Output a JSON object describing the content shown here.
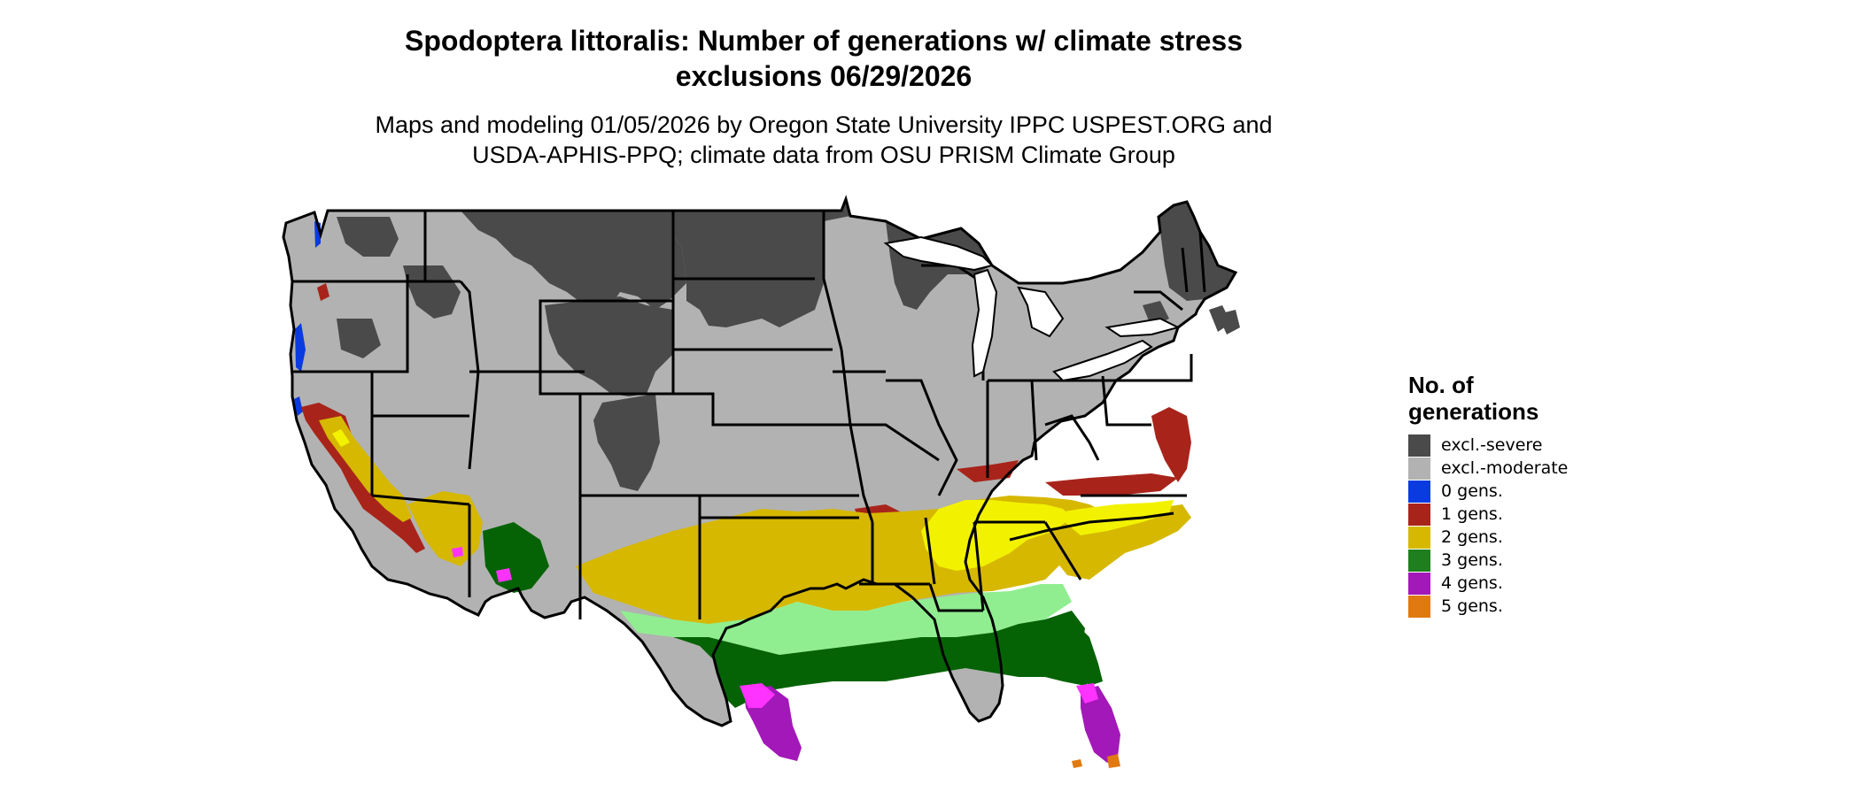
{
  "title_line1": "Spodoptera littoralis: Number of generations w/ climate stress",
  "title_line2": "exclusions 06/29/2026",
  "subtitle_line1": "Maps and modeling 01/05/2026 by Oregon State University IPPC USPEST.ORG and",
  "subtitle_line2": "USDA-APHIS-PPQ; climate data from OSU PRISM Climate Group",
  "legend": {
    "title_line1": "No. of",
    "title_line2": "generations",
    "items": [
      {
        "label": "excl.-severe",
        "color": "#4a4a4a"
      },
      {
        "label": "excl.-moderate",
        "color": "#b2b2b2"
      },
      {
        "label": "0 gens.",
        "color": "#0a3be0"
      },
      {
        "label": "1 gens.",
        "color": "#a8241a"
      },
      {
        "label": "2 gens.",
        "color": "#d6b800"
      },
      {
        "label": "3 gens.",
        "color": "#1f7f1f"
      },
      {
        "label": "4 gens.",
        "color": "#a318b8"
      },
      {
        "label": "5 gens.",
        "color": "#e07a10"
      }
    ]
  },
  "map_colors": {
    "severe": "#4a4a4a",
    "moderate": "#b2b2b2",
    "gen0": "#0a3be0",
    "gen1": "#a8241a",
    "gen2": "#d6b800",
    "gen2_bright": "#f2f200",
    "gen3_light": "#90ee90",
    "gen3": "#056305",
    "gen4": "#a318b8",
    "gen4_bright": "#ff33ff",
    "gen5": "#e07a10"
  }
}
